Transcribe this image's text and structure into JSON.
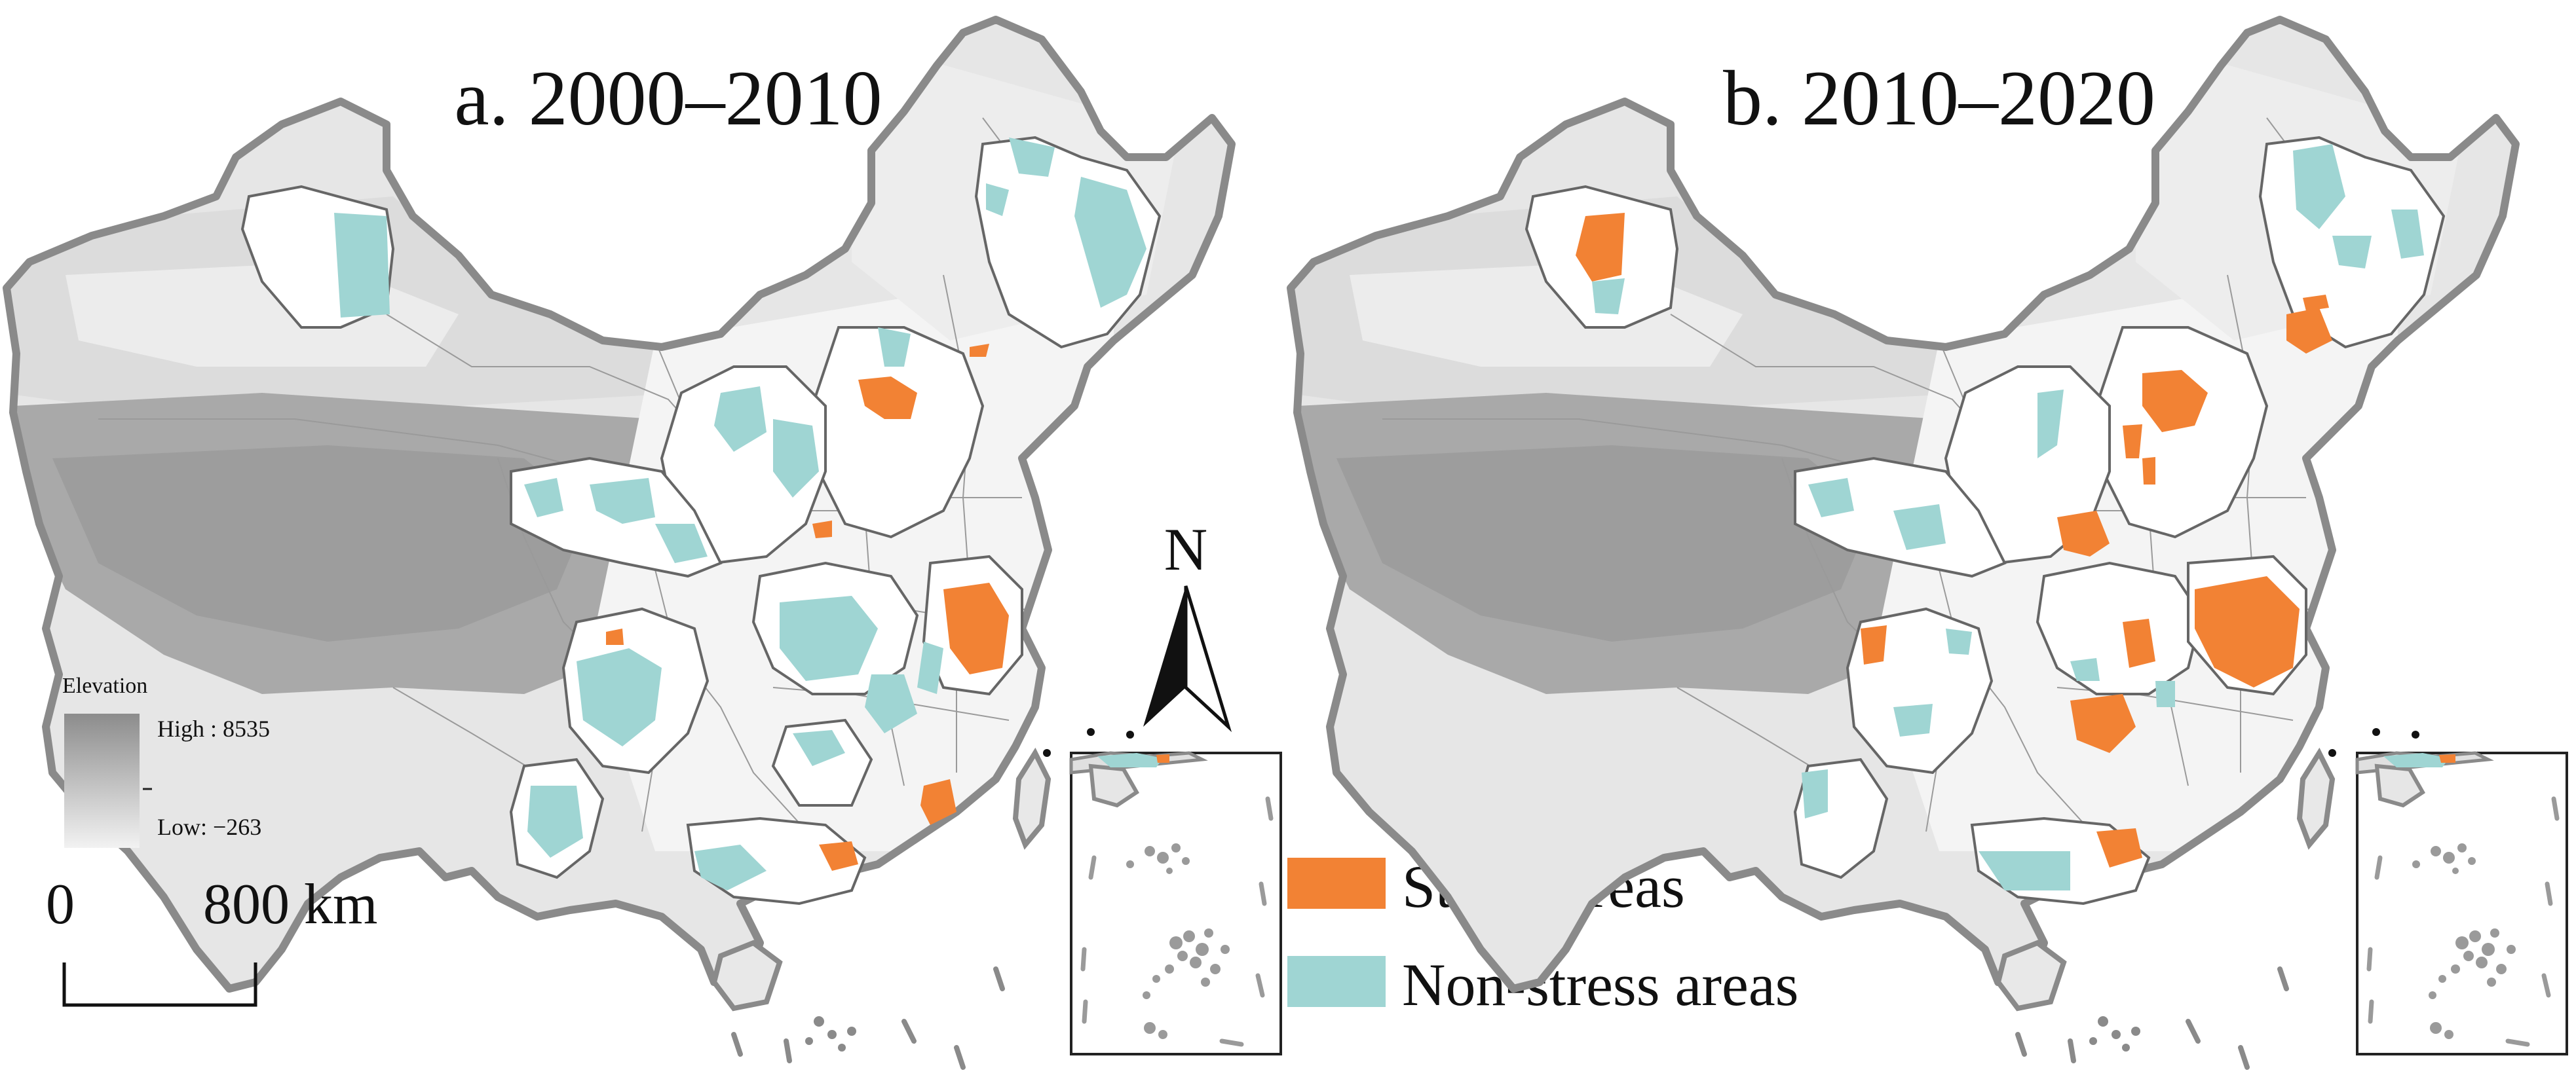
{
  "panels": [
    {
      "id": "a",
      "title": "a. 2000–2010"
    },
    {
      "id": "b",
      "title": "b. 2010–2020"
    }
  ],
  "elevation_legend": {
    "title": "Elevation",
    "high_label": "High : 8535",
    "low_label": "Low: −263"
  },
  "scale_bar": {
    "start": "0",
    "end": "800 km"
  },
  "north_arrow": {
    "label": "N"
  },
  "legend": {
    "items": [
      {
        "label": "Stress areas",
        "color": "#f28234"
      },
      {
        "label": "Non-stress areas",
        "color": "#9fd5d3"
      }
    ]
  },
  "colors": {
    "stress": "#f28234",
    "non_stress": "#9fd5d3",
    "border": "#8a8a8a",
    "terrain_high": "#8c8c8c",
    "terrain_low": "#f2f2f2"
  }
}
